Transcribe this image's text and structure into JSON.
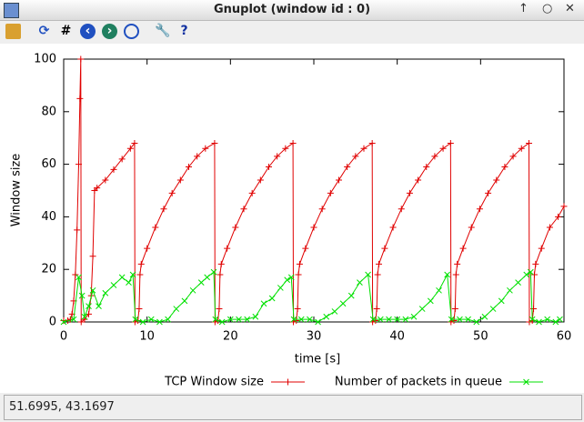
{
  "window": {
    "title": "Gnuplot (window id : 0)",
    "status": "51.6995,  43.1697"
  },
  "chart_data": {
    "type": "line",
    "x_label": "time [s]",
    "y_label": "Window size",
    "xlim": [
      0,
      60
    ],
    "ylim": [
      0,
      100
    ],
    "xticks": [
      0,
      10,
      20,
      30,
      40,
      50,
      60
    ],
    "yticks": [
      0,
      20,
      40,
      60,
      80,
      100
    ],
    "series": [
      {
        "name": "TCP Window size",
        "color": "#e00000",
        "marker": "plus",
        "x": [
          0,
          0.5,
          0.8,
          1,
          1.2,
          1.4,
          1.6,
          1.8,
          1.95,
          2.05,
          2.1,
          2.5,
          3,
          3.3,
          3.5,
          3.7,
          4,
          5,
          6,
          7,
          8,
          8.5,
          8.55,
          8.9,
          9.05,
          9.15,
          9.3,
          10,
          11,
          12,
          13,
          14,
          15,
          16,
          17,
          18.1,
          18.15,
          18.5,
          18.65,
          18.75,
          18.9,
          19.6,
          20.6,
          21.6,
          22.6,
          23.6,
          24.6,
          25.6,
          26.6,
          27.5,
          27.55,
          27.9,
          28.05,
          28.15,
          28.3,
          29,
          30,
          31,
          32,
          33,
          34,
          35,
          36,
          37,
          37.05,
          37.4,
          37.55,
          37.65,
          37.8,
          38.5,
          39.5,
          40.5,
          41.5,
          42.5,
          43.5,
          44.5,
          45.5,
          46.4,
          46.45,
          46.8,
          46.95,
          47.05,
          47.2,
          47.9,
          48.9,
          49.9,
          50.9,
          51.9,
          52.9,
          53.9,
          54.9,
          55.8,
          55.85,
          56.2,
          56.35,
          56.45,
          56.6,
          57.3,
          58.3,
          59.3,
          60
        ],
        "values": [
          0.5,
          0.5,
          1,
          3,
          8,
          18,
          35,
          60,
          85,
          100,
          0,
          1,
          3,
          10,
          25,
          50,
          51,
          54,
          58,
          62,
          66,
          68,
          0,
          0.5,
          5,
          18,
          22,
          28,
          36,
          43,
          49,
          54,
          59,
          63,
          66,
          68,
          0,
          0.5,
          5,
          18,
          22,
          28,
          36,
          43,
          49,
          54,
          59,
          63,
          66,
          68,
          0,
          0.5,
          5,
          18,
          22,
          28,
          36,
          43,
          49,
          54,
          59,
          63,
          66,
          68,
          0,
          0.5,
          5,
          18,
          22,
          28,
          36,
          43,
          49,
          54,
          59,
          63,
          66,
          68,
          0,
          0.5,
          5,
          18,
          22,
          28,
          36,
          43,
          49,
          54,
          59,
          63,
          66,
          68,
          0,
          0.5,
          5,
          18,
          22,
          28,
          36,
          40,
          44
        ]
      },
      {
        "name": "Number of packets in queue",
        "color": "#00e000",
        "marker": "cross",
        "x": [
          0,
          1.2,
          1.8,
          2.2,
          2.5,
          3,
          3.5,
          4.2,
          5,
          6,
          7,
          7.8,
          8.3,
          8.6,
          9.5,
          10.5,
          11.5,
          12.5,
          13.5,
          14.5,
          15.5,
          16.5,
          17.2,
          18,
          18.2,
          19,
          20,
          21,
          22,
          23,
          24,
          25,
          26,
          26.8,
          27.3,
          27.6,
          28.5,
          29.5,
          30.5,
          31.5,
          32.5,
          33.5,
          34.5,
          35.5,
          36.5,
          37.1,
          38,
          39,
          40,
          41,
          42,
          43,
          44,
          45,
          46,
          46.5,
          47.5,
          48.5,
          49.5,
          50.5,
          51.5,
          52.5,
          53.5,
          54.5,
          55.5,
          56,
          56.2,
          57,
          58,
          59,
          59.5
        ],
        "values": [
          0,
          1,
          17,
          10,
          2,
          6,
          12,
          6,
          11,
          14,
          17,
          15,
          18,
          1,
          0,
          1,
          0,
          1,
          5,
          8,
          12,
          15,
          17,
          19,
          1,
          0,
          1,
          1,
          1,
          2,
          7,
          9,
          13,
          16,
          17,
          1,
          1,
          1,
          0,
          2,
          4,
          7,
          10,
          15,
          18,
          1,
          1,
          1,
          1,
          1,
          2,
          5,
          8,
          12,
          18,
          1,
          1,
          1,
          0,
          2,
          5,
          8,
          12,
          15,
          18,
          19,
          1,
          0,
          1,
          0,
          1
        ]
      }
    ]
  }
}
